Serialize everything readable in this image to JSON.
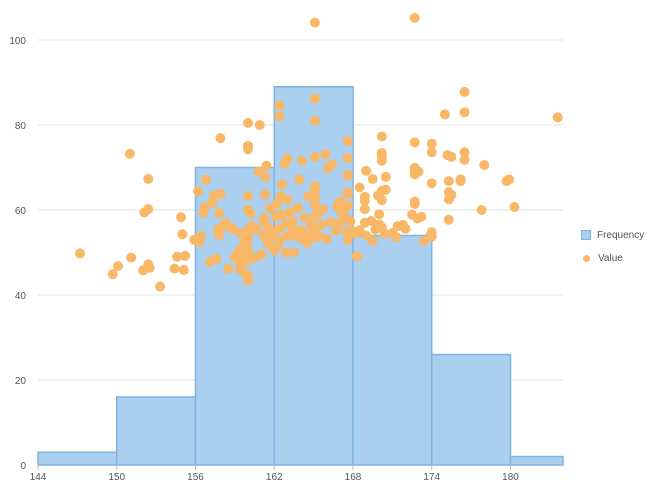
{
  "chart_data": {
    "type": "histogram-scatter",
    "xlim": [
      144,
      184
    ],
    "ylim": [
      0,
      100
    ],
    "x_ticks": [
      "144",
      "150",
      "156",
      "162",
      "168",
      "174",
      "180"
    ],
    "y_ticks": [
      "0",
      "20",
      "40",
      "60",
      "80",
      "100"
    ],
    "grid": "horizontal",
    "legend_position": "right",
    "colors": {
      "bar_fill": "#abcfee",
      "bar_stroke": "#7fb3e2",
      "point": "#f9b868",
      "grid": "#e3e3e3",
      "axis_text": "#555555"
    },
    "series": [
      {
        "name": "Frequency",
        "type": "bar",
        "bins": [
          {
            "x0": 144,
            "x1": 150,
            "value": 3
          },
          {
            "x0": 150,
            "x1": 156,
            "value": 16
          },
          {
            "x0": 156,
            "x1": 162,
            "value": 70
          },
          {
            "x0": 162,
            "x1": 168,
            "value": 89
          },
          {
            "x0": 168,
            "x1": 174,
            "value": 54
          },
          {
            "x0": 174,
            "x1": 180,
            "value": 26
          },
          {
            "x0": 180,
            "x1": 184,
            "value": 2
          }
        ]
      },
      {
        "name": "Value",
        "type": "scatter",
        "points": [
          [
            147.2,
            49.8
          ],
          [
            149.7,
            44.9
          ],
          [
            150.1,
            46.8
          ],
          [
            151.0,
            73.2
          ],
          [
            151.1,
            48.8
          ],
          [
            152.0,
            45.8
          ],
          [
            152.1,
            59.4
          ],
          [
            152.4,
            60.2
          ],
          [
            152.4,
            67.3
          ],
          [
            152.5,
            46.4
          ],
          [
            152.4,
            47.2
          ],
          [
            153.3,
            42.0
          ],
          [
            154.4,
            46.2
          ],
          [
            154.6,
            49.0
          ],
          [
            154.9,
            58.3
          ],
          [
            155.0,
            54.3
          ],
          [
            155.1,
            45.9
          ],
          [
            155.2,
            49.2
          ],
          [
            155.9,
            53.0
          ],
          [
            156.2,
            64.4
          ],
          [
            156.3,
            52.5
          ],
          [
            156.4,
            53.9
          ],
          [
            156.6,
            59.4
          ],
          [
            156.7,
            60.6
          ],
          [
            156.8,
            67.1
          ],
          [
            157.1,
            47.8
          ],
          [
            157.3,
            61.7
          ],
          [
            157.4,
            63.4
          ],
          [
            157.6,
            48.5
          ],
          [
            157.7,
            55.4
          ],
          [
            157.8,
            54.1
          ],
          [
            157.8,
            59.3
          ],
          [
            157.9,
            63.8
          ],
          [
            157.9,
            76.9
          ],
          [
            158.1,
            56.1
          ],
          [
            158.3,
            57.0
          ],
          [
            158.5,
            46.2
          ],
          [
            158.8,
            55.6
          ],
          [
            159.0,
            48.9
          ],
          [
            159.3,
            50.4
          ],
          [
            159.4,
            54.5
          ],
          [
            159.4,
            47.3
          ],
          [
            159.4,
            46.0
          ],
          [
            159.7,
            49.0
          ],
          [
            159.7,
            45.4
          ],
          [
            159.7,
            52.4
          ],
          [
            159.9,
            48.0
          ],
          [
            160.0,
            43.4
          ],
          [
            160.0,
            44.5
          ],
          [
            160.0,
            51.3
          ],
          [
            160.0,
            55.2
          ],
          [
            160.0,
            60.0
          ],
          [
            160.0,
            63.3
          ],
          [
            160.0,
            74.3
          ],
          [
            160.0,
            75.1
          ],
          [
            160.0,
            80.5
          ],
          [
            160.0,
            50.0
          ],
          [
            160.0,
            53.5
          ],
          [
            160.2,
            56.0
          ],
          [
            160.2,
            59.2
          ],
          [
            160.3,
            56.2
          ],
          [
            160.5,
            48.7
          ],
          [
            160.6,
            55.5
          ],
          [
            160.8,
            69.1
          ],
          [
            160.9,
            80.0
          ],
          [
            161.0,
            49.5
          ],
          [
            161.2,
            54.1
          ],
          [
            161.2,
            57.0
          ],
          [
            161.2,
            58.1
          ],
          [
            161.3,
            63.7
          ],
          [
            161.3,
            67.8
          ],
          [
            161.4,
            70.4
          ],
          [
            161.5,
            52.1
          ],
          [
            161.6,
            55.8
          ],
          [
            161.7,
            60.4
          ],
          [
            161.9,
            53.8
          ],
          [
            162.0,
            50.5
          ],
          [
            162.0,
            55.0
          ],
          [
            162.1,
            58.4
          ],
          [
            162.2,
            51.4
          ],
          [
            162.2,
            61.5
          ],
          [
            162.4,
            52.8
          ],
          [
            162.4,
            55.7
          ],
          [
            162.4,
            59.0
          ],
          [
            162.4,
            84.6
          ],
          [
            162.4,
            82.0
          ],
          [
            162.5,
            63.2
          ],
          [
            162.6,
            66.0
          ],
          [
            162.6,
            58.8
          ],
          [
            162.8,
            70.9
          ],
          [
            162.9,
            50.0
          ],
          [
            163.0,
            53.9
          ],
          [
            163.0,
            56.8
          ],
          [
            163.0,
            62.4
          ],
          [
            163.0,
            72.1
          ],
          [
            163.2,
            59.5
          ],
          [
            163.3,
            54.0
          ],
          [
            163.4,
            57.3
          ],
          [
            163.4,
            55.9
          ],
          [
            163.5,
            50.0
          ],
          [
            163.7,
            54.5
          ],
          [
            163.8,
            60.5
          ],
          [
            163.9,
            67.2
          ],
          [
            164.0,
            53.4
          ],
          [
            164.1,
            55.2
          ],
          [
            164.1,
            71.6
          ],
          [
            164.3,
            58.2
          ],
          [
            164.5,
            52.3
          ],
          [
            164.6,
            54.1
          ],
          [
            164.6,
            63.2
          ],
          [
            164.8,
            56.6
          ],
          [
            165.0,
            53.6
          ],
          [
            165.1,
            55.0
          ],
          [
            165.1,
            58.5
          ],
          [
            165.1,
            61.2
          ],
          [
            165.1,
            62.9
          ],
          [
            165.1,
            64.6
          ],
          [
            165.1,
            65.6
          ],
          [
            165.1,
            72.5
          ],
          [
            165.1,
            81.0
          ],
          [
            165.1,
            86.2
          ],
          [
            165.1,
            104.1
          ],
          [
            165.3,
            59.1
          ],
          [
            165.4,
            53.8
          ],
          [
            165.6,
            56.5
          ],
          [
            165.7,
            60.2
          ],
          [
            165.9,
            73.1
          ],
          [
            166.0,
            53.2
          ],
          [
            166.1,
            69.9
          ],
          [
            166.3,
            57.2
          ],
          [
            166.4,
            70.7
          ],
          [
            166.7,
            55.2
          ],
          [
            166.8,
            60.9
          ],
          [
            167.0,
            57.0
          ],
          [
            167.0,
            62.0
          ],
          [
            167.1,
            59.6
          ],
          [
            167.3,
            60.2
          ],
          [
            167.4,
            58.3
          ],
          [
            167.5,
            55.0
          ],
          [
            167.6,
            61.1
          ],
          [
            167.6,
            64.1
          ],
          [
            167.6,
            68.2
          ],
          [
            167.6,
            72.2
          ],
          [
            167.6,
            76.2
          ],
          [
            167.6,
            53.0
          ],
          [
            167.6,
            63.8
          ],
          [
            167.8,
            57.4
          ],
          [
            168.0,
            55.0
          ],
          [
            168.2,
            54.5
          ],
          [
            168.3,
            49.1
          ],
          [
            168.5,
            55.2
          ],
          [
            168.5,
            65.3
          ],
          [
            168.9,
            57.0
          ],
          [
            168.9,
            60.2
          ],
          [
            168.9,
            62.2
          ],
          [
            168.9,
            63.1
          ],
          [
            169.0,
            54.0
          ],
          [
            169.0,
            69.2
          ],
          [
            169.4,
            57.4
          ],
          [
            169.5,
            52.8
          ],
          [
            169.5,
            67.3
          ],
          [
            169.7,
            55.4
          ],
          [
            169.9,
            63.4
          ],
          [
            170.0,
            56.6
          ],
          [
            170.0,
            59.0
          ],
          [
            170.2,
            55.9
          ],
          [
            170.2,
            62.3
          ],
          [
            170.2,
            64.5
          ],
          [
            170.2,
            72.7
          ],
          [
            170.2,
            73.4
          ],
          [
            170.2,
            77.3
          ],
          [
            170.2,
            71.6
          ],
          [
            170.4,
            54.4
          ],
          [
            170.5,
            67.8
          ],
          [
            170.5,
            64.8
          ],
          [
            171.0,
            54.6
          ],
          [
            171.3,
            53.6
          ],
          [
            171.4,
            56.2
          ],
          [
            171.8,
            56.5
          ],
          [
            172.0,
            55.6
          ],
          [
            172.5,
            58.9
          ],
          [
            172.7,
            68.4
          ],
          [
            172.7,
            69.2
          ],
          [
            172.7,
            69.9
          ],
          [
            172.7,
            75.9
          ],
          [
            172.7,
            105.2
          ],
          [
            172.7,
            61.4
          ],
          [
            172.7,
            62.0
          ],
          [
            172.9,
            58.0
          ],
          [
            173.0,
            69.0
          ],
          [
            173.2,
            58.4
          ],
          [
            173.4,
            52.7
          ],
          [
            173.9,
            54.0
          ],
          [
            174.0,
            54.8
          ],
          [
            174.0,
            66.3
          ],
          [
            174.0,
            73.6
          ],
          [
            174.0,
            75.6
          ],
          [
            174.0,
            53.7
          ],
          [
            175.0,
            82.5
          ],
          [
            175.2,
            72.9
          ],
          [
            175.3,
            57.7
          ],
          [
            175.3,
            62.5
          ],
          [
            175.3,
            64.2
          ],
          [
            175.3,
            66.8
          ],
          [
            175.5,
            72.5
          ],
          [
            175.5,
            63.6
          ],
          [
            176.2,
            66.8
          ],
          [
            176.2,
            67.2
          ],
          [
            176.5,
            71.8
          ],
          [
            176.5,
            73.6
          ],
          [
            176.5,
            83.0
          ],
          [
            176.5,
            87.8
          ],
          [
            177.8,
            60.0
          ],
          [
            178.0,
            70.6
          ],
          [
            179.7,
            66.8
          ],
          [
            179.9,
            67.2
          ],
          [
            180.3,
            60.7
          ],
          [
            183.6,
            81.8
          ]
        ]
      }
    ]
  }
}
